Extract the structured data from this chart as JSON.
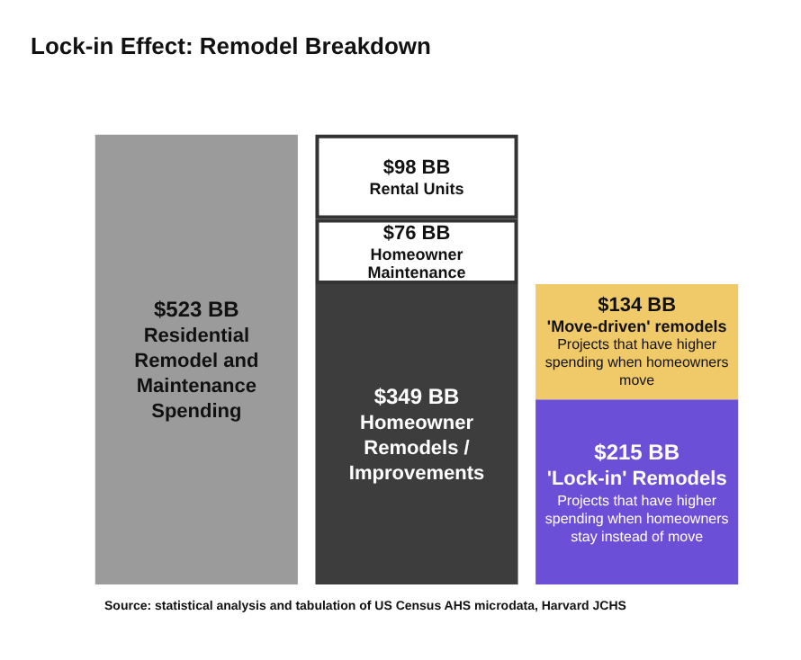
{
  "chart_data": {
    "type": "bar",
    "title": "Lock-in Effect: Remodel Breakdown",
    "categories": [
      null,
      null,
      null
    ],
    "stacked": true,
    "tick_labels": false,
    "legend": false,
    "series": [
      {
        "name": "Residential Remodel and Maintenance Spending",
        "color": "#9b9b9b",
        "values": [
          523,
          null,
          null
        ],
        "value_labels": [
          "$523 BB",
          null,
          null
        ]
      },
      {
        "name": "Homeowner Remodels / Improvements",
        "color": "#3d3d3d",
        "values": [
          null,
          349,
          null
        ],
        "value_labels": [
          null,
          "$349 BB",
          null
        ]
      },
      {
        "name": "Homeowner Maintenance",
        "color": "#ffffff",
        "values": [
          null,
          76,
          null
        ],
        "value_labels": [
          null,
          "$76 BB",
          null
        ]
      },
      {
        "name": "Rental Units",
        "color": "#ffffff",
        "values": [
          null,
          98,
          null
        ],
        "value_labels": [
          null,
          "$98 BB",
          null
        ]
      },
      {
        "name": "'Lock-in' Remodels",
        "color": "#6b4fd6",
        "values": [
          null,
          null,
          215
        ],
        "value_labels": [
          null,
          null,
          "$215 BB"
        ]
      },
      {
        "name": "'Move-driven' remodels",
        "color": "#f0c968",
        "values": [
          null,
          null,
          134
        ],
        "value_labels": [
          null,
          null,
          "$134 BB"
        ]
      }
    ],
    "annotations": [
      "Projects that have higher spending when homeowners stay instead of move",
      "Projects that have higher spending when homeowners move",
      "Source: statistical analysis and tabulation of US Census AHS microdata, Harvard JCHS"
    ]
  }
}
